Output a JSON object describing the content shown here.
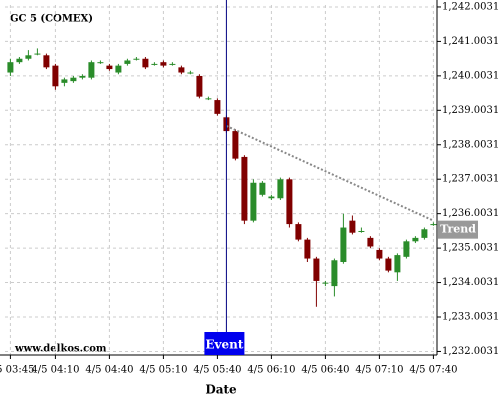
{
  "chart_data": {
    "type": "candlestick",
    "title": "GC 5 (COMEX)",
    "watermark": "www.delkos.com",
    "x_label": "Date",
    "x": [
      "4/5 03:45",
      "4/5 03:50",
      "4/5 03:55",
      "4/5 04:00",
      "4/5 04:05",
      "4/5 04:10",
      "4/5 04:15",
      "4/5 04:20",
      "4/5 04:25",
      "4/5 04:30",
      "4/5 04:35",
      "4/5 04:40",
      "4/5 04:45",
      "4/5 04:50",
      "4/5 04:55",
      "4/5 05:00",
      "4/5 05:05",
      "4/5 05:10",
      "4/5 05:15",
      "4/5 05:20",
      "4/5 05:25",
      "4/5 05:30",
      "4/5 05:35",
      "4/5 05:40",
      "4/5 05:45",
      "4/5 05:50",
      "4/5 05:55",
      "4/5 06:00",
      "4/5 06:05",
      "4/5 06:10",
      "4/5 06:15",
      "4/5 06:20",
      "4/5 06:25",
      "4/5 06:30",
      "4/5 06:35",
      "4/5 06:40",
      "4/5 06:45",
      "4/5 06:50",
      "4/5 06:55",
      "4/5 07:00",
      "4/5 07:05",
      "4/5 07:10",
      "4/5 07:15",
      "4/5 07:20",
      "4/5 07:25",
      "4/5 07:30",
      "4/5 07:35",
      "4/5 07:40"
    ],
    "open": [
      1240.1,
      1240.4,
      1240.5,
      1240.65,
      1240.6,
      1240.3,
      1239.8,
      1239.85,
      1239.95,
      1239.95,
      1240.4,
      1240.3,
      1240.1,
      1240.35,
      1240.5,
      1240.5,
      1240.35,
      1240.4,
      1240.35,
      1240.25,
      1240.1,
      1240.0,
      1239.35,
      1239.3,
      1238.8,
      1238.4,
      1237.65,
      1235.8,
      1236.55,
      1236.45,
      1236.45,
      1237.0,
      1235.7,
      1235.25,
      1234.7,
      1234.0,
      1233.9,
      1234.6,
      1235.8,
      1235.5,
      1235.3,
      1234.95,
      1234.7,
      1234.3,
      1234.75,
      1235.2,
      1235.3,
      1235.7
    ],
    "high": [
      1240.5,
      1240.55,
      1240.75,
      1240.8,
      1240.65,
      1240.35,
      1239.95,
      1240.0,
      1240.05,
      1240.45,
      1240.45,
      1240.35,
      1240.35,
      1240.5,
      1240.55,
      1240.55,
      1240.4,
      1240.45,
      1240.4,
      1240.3,
      1240.15,
      1240.05,
      1239.4,
      1239.35,
      1238.85,
      1238.45,
      1237.7,
      1237.0,
      1236.95,
      1236.55,
      1237.05,
      1237.05,
      1235.75,
      1235.3,
      1234.75,
      1234.05,
      1234.7,
      1236.0,
      1235.95,
      1235.6,
      1235.35,
      1235.0,
      1234.75,
      1234.85,
      1235.25,
      1235.35,
      1235.6,
      1235.75
    ],
    "low": [
      1240.0,
      1240.35,
      1240.45,
      1240.6,
      1240.2,
      1239.6,
      1239.7,
      1239.8,
      1239.9,
      1239.9,
      1240.35,
      1240.15,
      1240.05,
      1240.3,
      1240.45,
      1240.2,
      1240.3,
      1240.25,
      1240.3,
      1240.05,
      1240.05,
      1239.35,
      1239.3,
      1238.85,
      1238.35,
      1237.55,
      1235.7,
      1235.75,
      1236.5,
      1236.4,
      1236.4,
      1235.6,
      1235.2,
      1234.6,
      1233.3,
      1233.9,
      1233.6,
      1234.55,
      1235.4,
      1235.45,
      1235.0,
      1234.65,
      1234.3,
      1234.05,
      1234.7,
      1235.15,
      1235.25,
      1235.65
    ],
    "close": [
      1240.4,
      1240.5,
      1240.6,
      1240.65,
      1240.25,
      1239.7,
      1239.9,
      1239.95,
      1240.0,
      1240.4,
      1240.4,
      1240.2,
      1240.3,
      1240.45,
      1240.5,
      1240.25,
      1240.35,
      1240.3,
      1240.35,
      1240.1,
      1240.1,
      1239.4,
      1239.35,
      1238.9,
      1238.4,
      1237.6,
      1235.8,
      1236.9,
      1236.9,
      1236.5,
      1237.0,
      1235.7,
      1235.25,
      1234.7,
      1234.05,
      1234.0,
      1234.65,
      1235.6,
      1235.45,
      1235.5,
      1235.05,
      1234.7,
      1234.35,
      1234.8,
      1235.2,
      1235.3,
      1235.55,
      1235.7
    ],
    "up_color": "#2a8c2a",
    "down_color": "#800000",
    "xlim": [
      "4/5 03:42",
      "4/5 07:42"
    ],
    "xticks": [
      "4/5 03:45",
      "4/5 04:10",
      "4/5 04:40",
      "4/5 05:10",
      "4/5 05:40",
      "4/5 06:10",
      "4/5 06:40",
      "4/5 07:10",
      "4/5 07:40"
    ],
    "ylim": [
      1231.9,
      1242.06
    ],
    "yticks": [
      {
        "value": 1242.0031,
        "label": "1,242.0031"
      },
      {
        "value": 1241.0031,
        "label": "1,241.0031"
      },
      {
        "value": 1240.0031,
        "label": "1,240.0031"
      },
      {
        "value": 1239.0031,
        "label": "1,239.0031"
      },
      {
        "value": 1238.0031,
        "label": "1,238.0031"
      },
      {
        "value": 1237.0031,
        "label": "1,237.0031"
      },
      {
        "value": 1236.0031,
        "label": "1,236.0031"
      },
      {
        "value": 1235.0031,
        "label": "1,235.0031"
      },
      {
        "value": 1234.0031,
        "label": "1,234.0031"
      },
      {
        "value": 1233.0031,
        "label": "1,233.0031"
      },
      {
        "value": 1232.0031,
        "label": "1,232.0031"
      }
    ],
    "grid": true,
    "event": {
      "label": "Event",
      "x": "4/5 05:45"
    },
    "trend": {
      "label": "Trend",
      "x": [
        "4/5 05:45",
        "4/5 07:40"
      ],
      "y": [
        1238.55,
        1235.8
      ]
    }
  }
}
